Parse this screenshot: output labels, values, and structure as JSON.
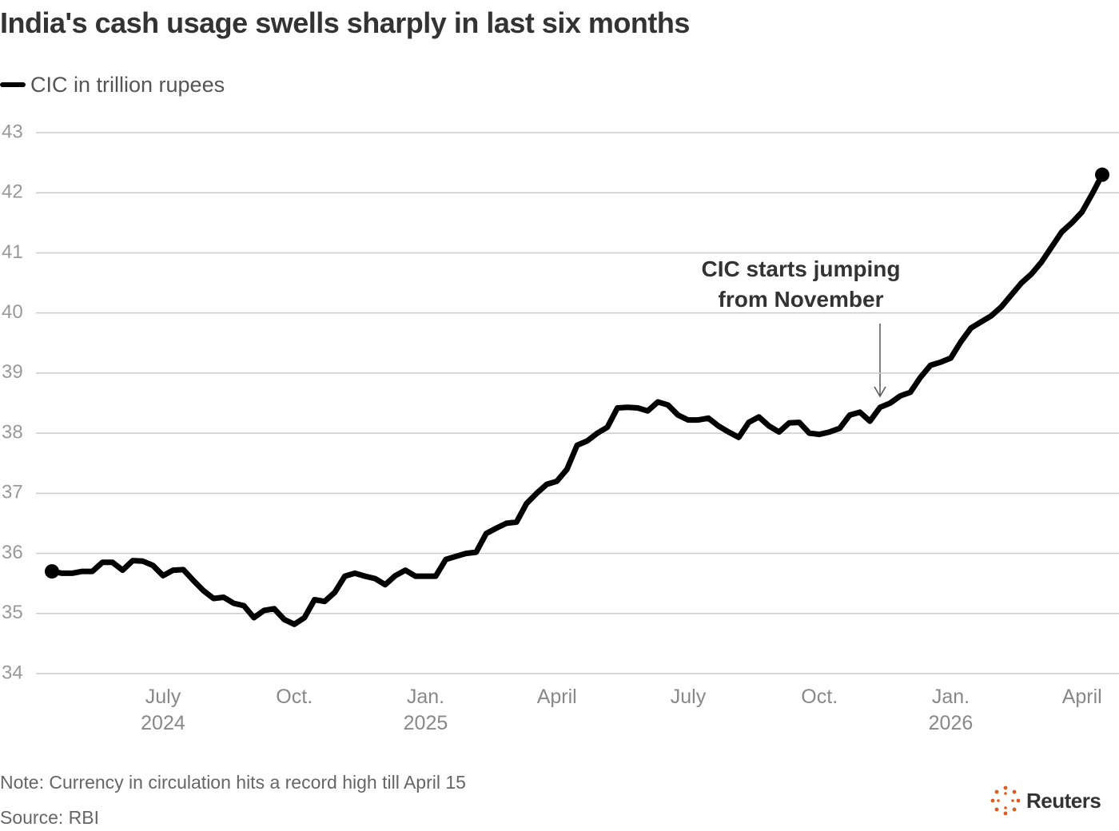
{
  "chart_data": {
    "type": "line",
    "title": "India's cash usage swells sharply in last six months",
    "annotation": "CIC starts jumping\nfrom November",
    "note": "Note: Currency in circulation hits a record high till April 15",
    "source": "Source: RBI",
    "logo": "Reuters",
    "categories": [
      null,
      null,
      null,
      null,
      null,
      null,
      null,
      null,
      null,
      null,
      null,
      "July\n2024",
      null,
      null,
      null,
      null,
      null,
      null,
      null,
      null,
      null,
      null,
      null,
      null,
      "Oct.",
      null,
      null,
      null,
      null,
      null,
      null,
      null,
      null,
      null,
      null,
      null,
      null,
      "Jan.\n2025",
      null,
      null,
      null,
      null,
      null,
      null,
      null,
      null,
      null,
      null,
      null,
      null,
      "April",
      null,
      null,
      null,
      null,
      null,
      null,
      null,
      null,
      null,
      null,
      null,
      null,
      "July",
      null,
      null,
      null,
      null,
      null,
      null,
      null,
      null,
      null,
      null,
      null,
      null,
      "Oct.",
      null,
      null,
      null,
      null,
      null,
      null,
      null,
      null,
      null,
      null,
      null,
      null,
      "Jan.\n2026",
      null,
      null,
      null,
      null,
      null,
      null,
      null,
      null,
      null,
      null,
      null,
      null,
      "April",
      null,
      null
    ],
    "series": [
      {
        "name": "CIC in trillion rupees",
        "color": "#000000",
        "values": [
          35.7,
          35.67,
          35.67,
          35.7,
          35.7,
          35.85,
          35.85,
          35.72,
          35.88,
          35.87,
          35.8,
          35.63,
          35.72,
          35.73,
          35.55,
          35.38,
          35.25,
          35.27,
          35.17,
          35.13,
          34.93,
          35.05,
          35.08,
          34.9,
          34.82,
          34.93,
          35.23,
          35.2,
          35.35,
          35.62,
          35.67,
          35.62,
          35.58,
          35.48,
          35.63,
          35.72,
          35.62,
          35.62,
          35.62,
          35.9,
          35.95,
          36.0,
          36.02,
          36.33,
          36.42,
          36.5,
          36.52,
          36.83,
          37.0,
          37.15,
          37.2,
          37.4,
          37.8,
          37.87,
          38.0,
          38.1,
          38.42,
          38.43,
          38.42,
          38.37,
          38.52,
          38.47,
          38.3,
          38.22,
          38.22,
          38.25,
          38.12,
          38.02,
          37.93,
          38.18,
          38.27,
          38.12,
          38.02,
          38.17,
          38.18,
          38.0,
          37.98,
          38.02,
          38.08,
          38.3,
          38.35,
          38.2,
          38.43,
          38.5,
          38.62,
          38.68,
          38.93,
          39.13,
          39.18,
          39.25,
          39.52,
          39.75,
          39.85,
          39.95,
          40.1,
          40.3,
          40.5,
          40.65,
          40.85,
          41.1,
          41.35,
          41.5,
          41.68,
          41.98,
          42.3
        ]
      }
    ],
    "ylim": [
      34,
      43
    ],
    "yticks": [
      34,
      35,
      36,
      37,
      38,
      39,
      40,
      41,
      42,
      43
    ],
    "grid": true
  }
}
